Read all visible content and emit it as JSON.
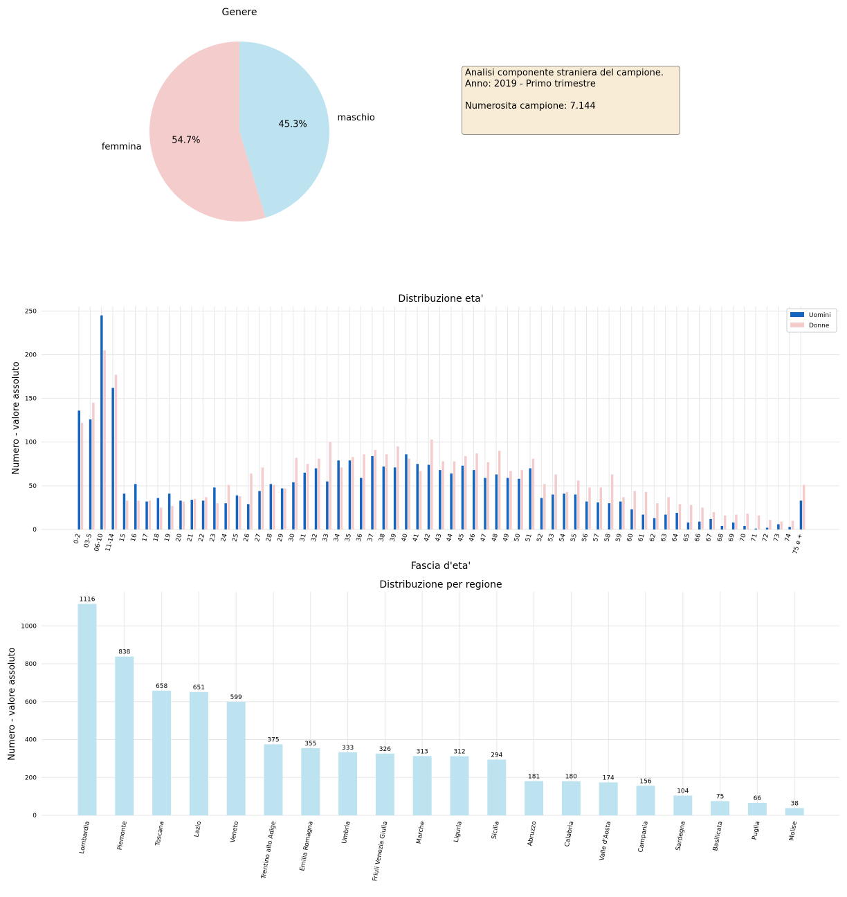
{
  "infobox": {
    "line1": "Analisi componente straniera del campione.",
    "line2": "Anno: 2019 - Primo trimestre",
    "line3": "Numerosita campione: 7.144"
  },
  "colors": {
    "uomini": "#1565c0",
    "donne": "#f4cccc",
    "maschio": "#bee3f0",
    "femmina": "#f4cccc",
    "regione": "#bee3f0"
  },
  "chart_data": [
    {
      "type": "pie",
      "title": "Genere",
      "labels": [
        "maschio",
        "femmina"
      ],
      "values": [
        45.3,
        54.7
      ],
      "pct_labels": [
        "45.3%",
        "54.7%"
      ]
    },
    {
      "type": "bar",
      "title": "Distribuzione eta'",
      "xlabel": "Fascia d'eta'",
      "ylabel": "Numero - valore assoluto",
      "ylim": [
        0,
        255
      ],
      "yticks": [
        0,
        50,
        100,
        150,
        200,
        250
      ],
      "grid": true,
      "legend_position": "top-right",
      "categories": [
        "0-2",
        "03-5",
        "06-10",
        "11-14",
        "15",
        "16",
        "17",
        "18",
        "19",
        "20",
        "21",
        "22",
        "23",
        "24",
        "25",
        "26",
        "27",
        "28",
        "29",
        "30",
        "31",
        "32",
        "33",
        "34",
        "35",
        "36",
        "37",
        "38",
        "39",
        "40",
        "41",
        "42",
        "43",
        "44",
        "45",
        "46",
        "47",
        "48",
        "49",
        "50",
        "51",
        "52",
        "53",
        "54",
        "55",
        "56",
        "57",
        "58",
        "59",
        "60",
        "61",
        "62",
        "63",
        "64",
        "65",
        "66",
        "67",
        "68",
        "69",
        "70",
        "71",
        "72",
        "73",
        "74",
        "75 e +"
      ],
      "series": [
        {
          "name": "Uomini",
          "values": [
            136,
            126,
            245,
            162,
            41,
            52,
            32,
            36,
            41,
            33,
            34,
            33,
            48,
            30,
            39,
            29,
            44,
            52,
            47,
            54,
            65,
            70,
            55,
            79,
            79,
            59,
            84,
            72,
            71,
            86,
            75,
            74,
            68,
            64,
            73,
            68,
            59,
            63,
            59,
            58,
            70,
            36,
            40,
            41,
            40,
            32,
            31,
            30,
            32,
            23,
            17,
            13,
            17,
            19,
            8,
            9,
            12,
            4,
            8,
            4,
            1,
            2,
            6,
            3,
            33
          ]
        },
        {
          "name": "Donne",
          "values": [
            122,
            145,
            205,
            177,
            33,
            33,
            33,
            25,
            27,
            32,
            35,
            37,
            30,
            51,
            38,
            64,
            71,
            51,
            47,
            82,
            75,
            81,
            100,
            71,
            83,
            86,
            91,
            86,
            95,
            81,
            67,
            103,
            78,
            78,
            84,
            87,
            77,
            90,
            67,
            68,
            81,
            52,
            63,
            43,
            56,
            48,
            48,
            63,
            37,
            44,
            43,
            30,
            37,
            29,
            28,
            25,
            20,
            16,
            17,
            18,
            16,
            11,
            9,
            10,
            51
          ]
        }
      ]
    },
    {
      "type": "bar",
      "title": "Distribuzione per regione",
      "ylabel": "Numero - valore assoluto",
      "ylim": [
        0,
        1180
      ],
      "yticks": [
        0,
        200,
        400,
        600,
        800,
        1000
      ],
      "grid": true,
      "categories": [
        "Lombardia",
        "Piemonte",
        "Toscana",
        "Lazio",
        "Veneto",
        "Trentino alto Adige",
        "Emilia Romagna",
        "Umbria",
        "Friuli Venezia Giulia",
        "Marche",
        "Liguria",
        "Sicilia",
        "Abruzzo",
        "Calabria",
        "Valle d'Aosta",
        "Campania",
        "Sardegna",
        "Basilicata",
        "Puglia",
        "Molise"
      ],
      "values": [
        1116,
        838,
        658,
        651,
        599,
        375,
        355,
        333,
        326,
        313,
        312,
        294,
        181,
        180,
        174,
        156,
        104,
        75,
        66,
        38
      ]
    }
  ]
}
